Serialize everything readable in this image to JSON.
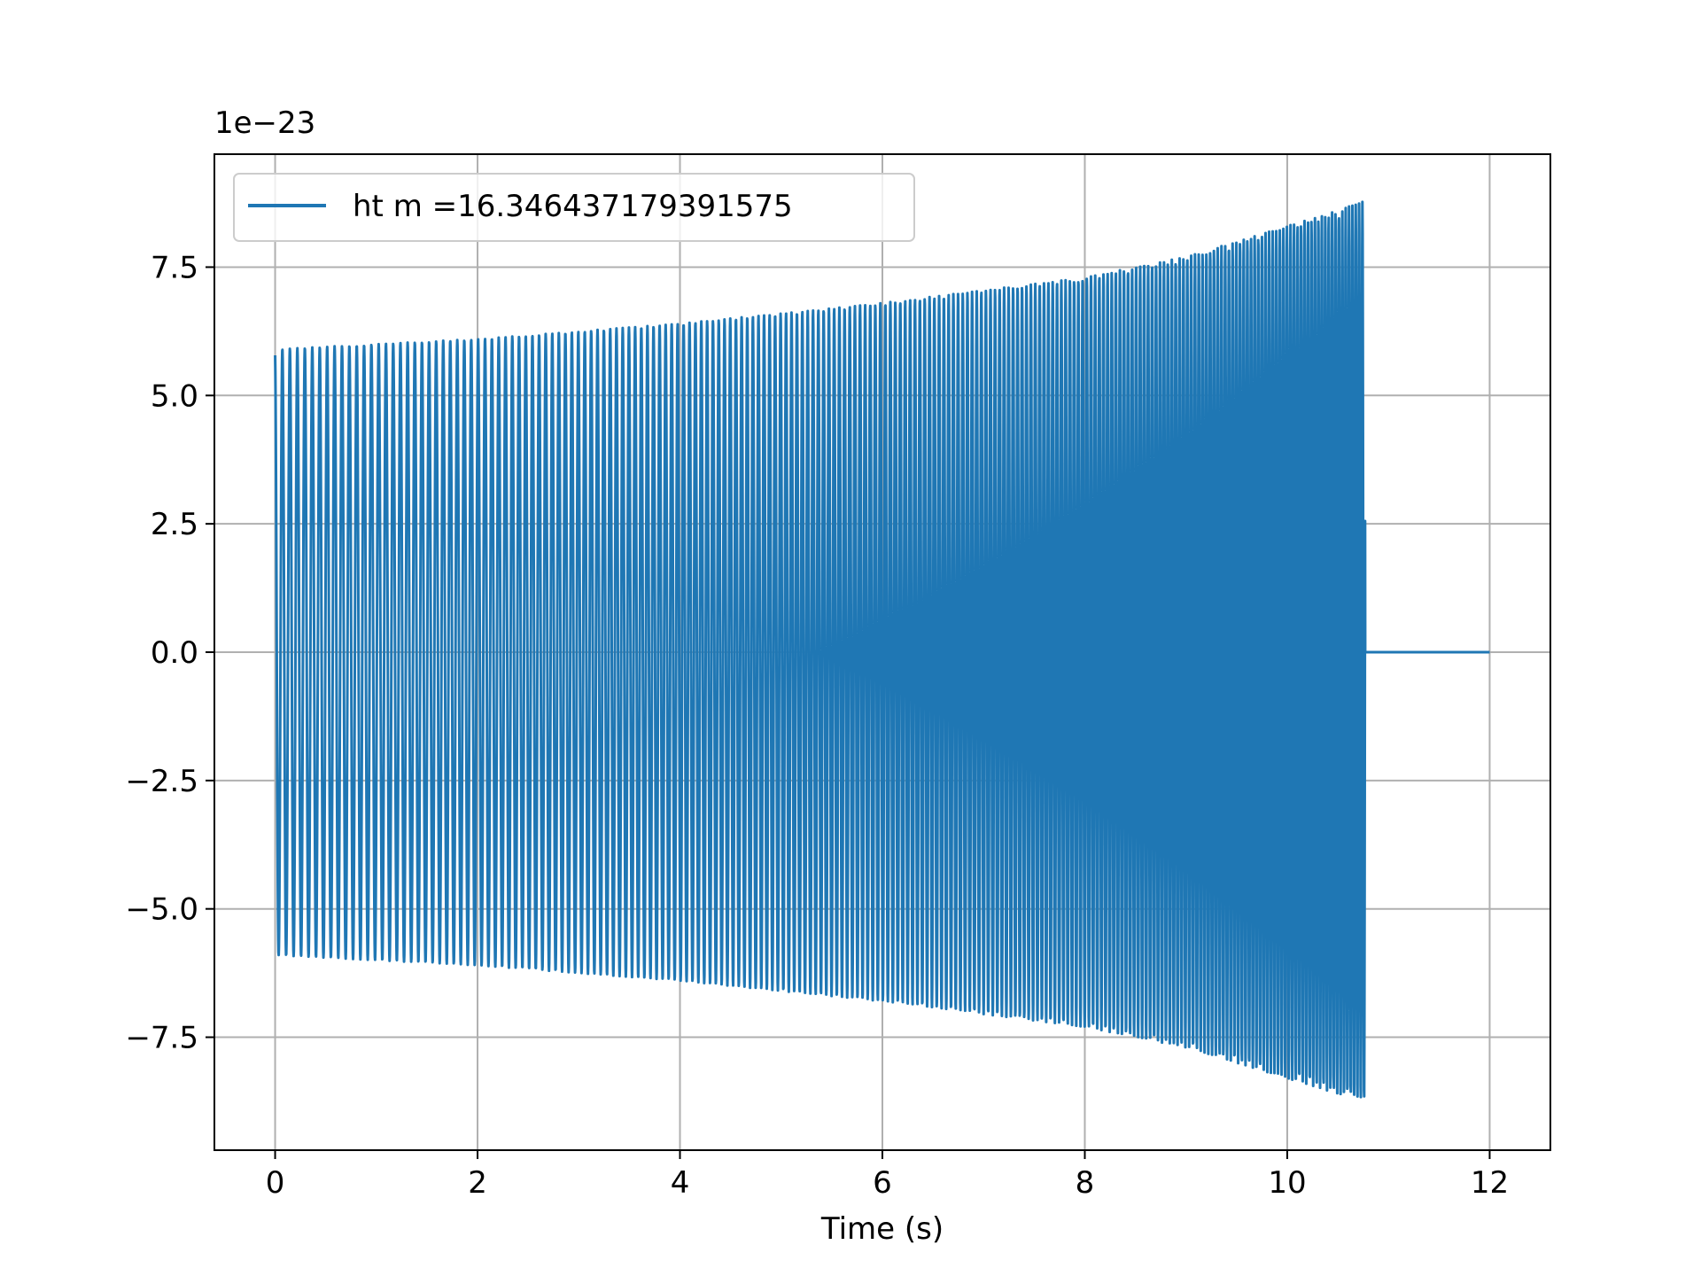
{
  "chart_data": {
    "type": "line",
    "title": "",
    "xlabel": "Time (s)",
    "ylabel": "",
    "y_offset_text": "1e−23",
    "xlim": [
      -0.6,
      12.6
    ],
    "ylim": [
      -9.7,
      9.7
    ],
    "x_ticks": [
      0,
      2,
      4,
      6,
      8,
      10,
      12
    ],
    "x_tick_labels": [
      "0",
      "2",
      "4",
      "6",
      "8",
      "10",
      "12"
    ],
    "y_ticks": [
      -7.5,
      -5.0,
      -2.5,
      0.0,
      2.5,
      5.0,
      7.5
    ],
    "y_tick_labels": [
      "−7.5",
      "−5.0",
      "−2.5",
      "0.0",
      "2.5",
      "5.0",
      "7.5"
    ],
    "grid": true,
    "legend_position": "upper-left",
    "series": [
      {
        "name": "ht m =16.346437179391575",
        "color": "#1f77b4",
        "description": "chirp oscillation with growing amplitude, ending at merger then zero",
        "t_start": 0,
        "t_merger": 10.77,
        "t_end": 12,
        "envelope_time": [
          0,
          2,
          4,
          6,
          8,
          9,
          10,
          10.5,
          10.77
        ],
        "envelope_amplitude": [
          5.9,
          6.1,
          6.4,
          6.8,
          7.3,
          7.7,
          8.3,
          8.6,
          8.8
        ],
        "post_merger_value": 0.0
      }
    ]
  }
}
